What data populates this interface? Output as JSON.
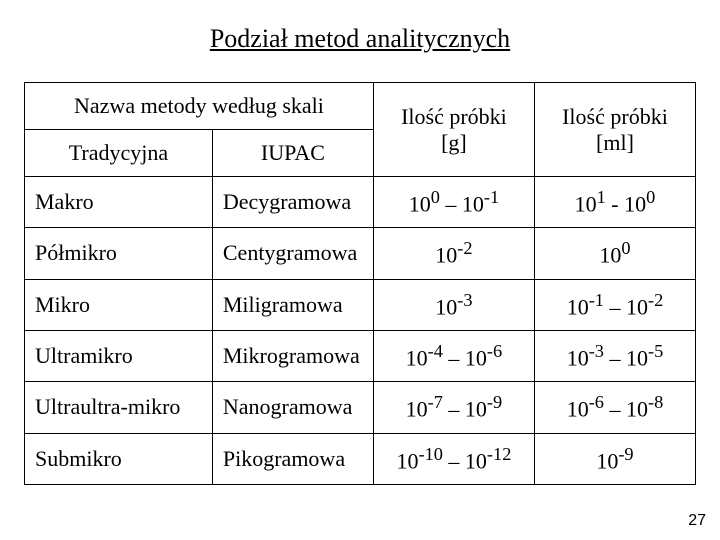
{
  "title": "Podział metod analitycznych",
  "header": {
    "scale_group": "Nazwa metody według skali",
    "trad": "Tradycyjna",
    "iupac": "IUPAC",
    "sample_g_label": "Ilość próbki",
    "sample_g_unit": "[g]",
    "sample_ml_label": "Ilość próbki",
    "sample_ml_unit": "[ml]"
  },
  "rows": [
    {
      "trad": "Makro",
      "iupac": "Decygramowa",
      "g": "10<sup>0</sup> – 10<sup>-1</sup>",
      "ml": "10<sup>1</sup> - 10<sup>0</sup>"
    },
    {
      "trad": "Półmikro",
      "iupac": "Centygramowa",
      "g": "10<sup>-2</sup>",
      "ml": "10<sup>0</sup>"
    },
    {
      "trad": "Mikro",
      "iupac": "Miligramowa",
      "g": "10<sup>-3</sup>",
      "ml": "10<sup>-1</sup> – 10<sup>-2</sup>"
    },
    {
      "trad": "Ultramikro",
      "iupac": "Mikrogramowa",
      "g": "10<sup>-4</sup> – 10<sup>-6</sup>",
      "ml": "10<sup>-3</sup> – 10<sup>-5</sup>"
    },
    {
      "trad": "Ultraultra-mikro",
      "iupac": "Nanogramowa",
      "g": "10<sup>-7</sup> – 10<sup>-9</sup>",
      "ml": "10<sup>-6</sup> – 10<sup>-8</sup>"
    },
    {
      "trad": "Submikro",
      "iupac": "Pikogramowa",
      "g": "10<sup>-10</sup> – 10<sup>-12</sup>",
      "ml": "10<sup>-9</sup>"
    }
  ],
  "page_number": "27",
  "colors": {
    "text": "#000000",
    "bg": "#ffffff",
    "border": "#000000"
  }
}
